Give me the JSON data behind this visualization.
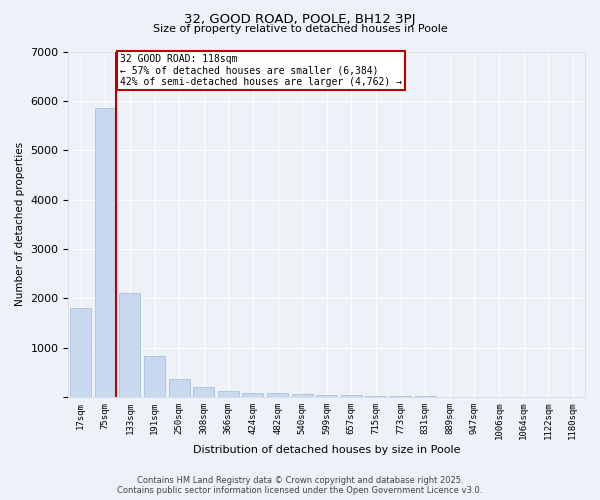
{
  "title1": "32, GOOD ROAD, POOLE, BH12 3PJ",
  "title2": "Size of property relative to detached houses in Poole",
  "xlabel": "Distribution of detached houses by size in Poole",
  "ylabel": "Number of detached properties",
  "categories": [
    "17sqm",
    "75sqm",
    "133sqm",
    "191sqm",
    "250sqm",
    "308sqm",
    "366sqm",
    "424sqm",
    "482sqm",
    "540sqm",
    "599sqm",
    "657sqm",
    "715sqm",
    "773sqm",
    "831sqm",
    "889sqm",
    "947sqm",
    "1006sqm",
    "1064sqm",
    "1122sqm",
    "1180sqm"
  ],
  "values": [
    1800,
    5850,
    2100,
    820,
    360,
    210,
    120,
    90,
    80,
    65,
    45,
    30,
    20,
    15,
    10,
    8,
    5,
    4,
    3,
    2,
    2
  ],
  "bar_color": "#c8d9ef",
  "bar_edge_color": "#a0bbd8",
  "vline_color": "#bb0000",
  "annotation_text": "32 GOOD ROAD: 118sqm\n← 57% of detached houses are smaller (6,384)\n42% of semi-detached houses are larger (4,762) →",
  "annotation_box_color": "#bb0000",
  "ylim": [
    0,
    7000
  ],
  "yticks": [
    0,
    1000,
    2000,
    3000,
    4000,
    5000,
    6000,
    7000
  ],
  "background_color": "#edf1f8",
  "grid_color": "#ffffff",
  "footer_line1": "Contains HM Land Registry data © Crown copyright and database right 2025.",
  "footer_line2": "Contains public sector information licensed under the Open Government Licence v3.0."
}
